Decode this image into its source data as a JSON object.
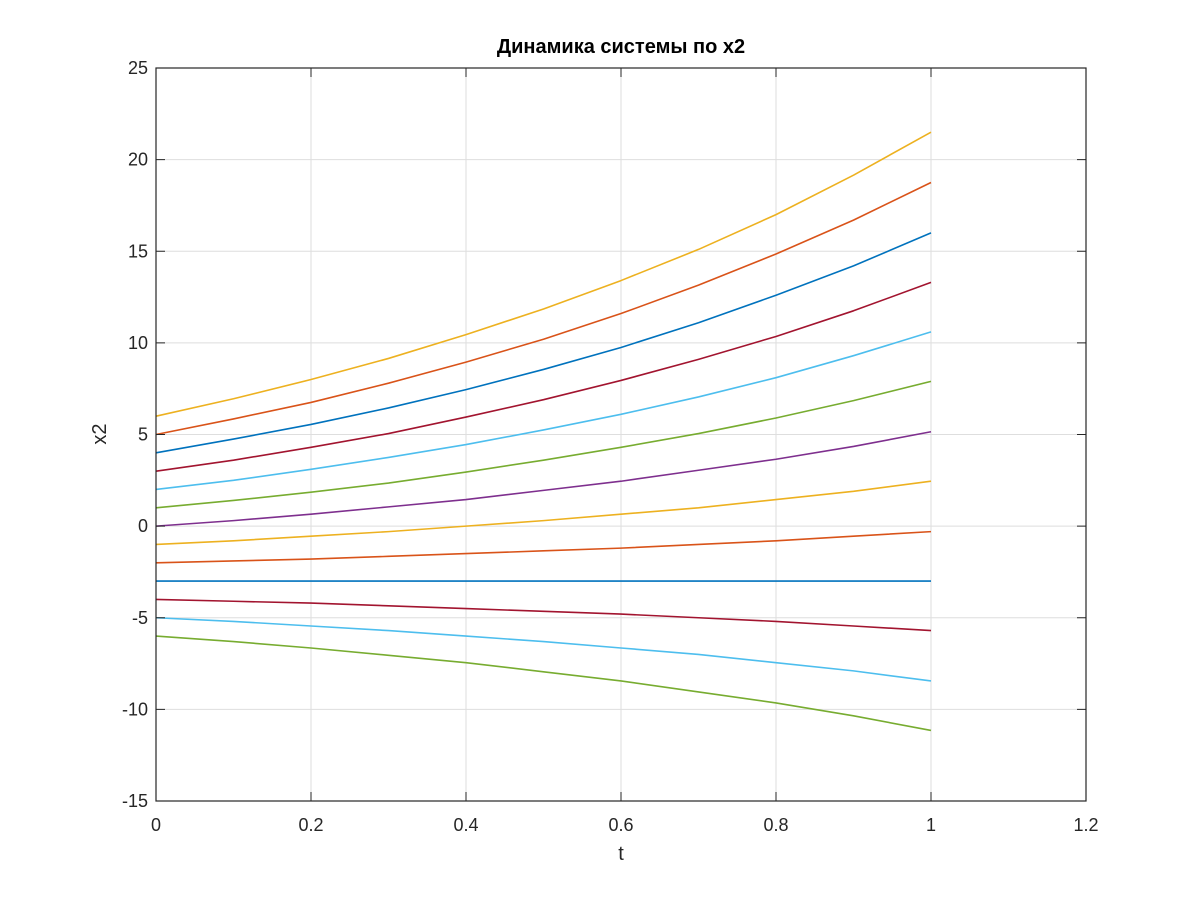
{
  "chart_data": {
    "type": "line",
    "title": "Динамика системы по x2",
    "xlabel": "t",
    "ylabel": "x2",
    "xlim": [
      0,
      1.2
    ],
    "ylim": [
      -15,
      25
    ],
    "xticks": [
      0,
      0.2,
      0.4,
      0.6,
      0.8,
      1,
      1.2
    ],
    "xtick_labels": [
      "0",
      "0.2",
      "0.4",
      "0.6",
      "0.8",
      "1",
      "1.2"
    ],
    "yticks": [
      -15,
      -10,
      -5,
      0,
      5,
      10,
      15,
      20,
      25
    ],
    "ytick_labels": [
      "-15",
      "-10",
      "-5",
      "0",
      "5",
      "10",
      "15",
      "20",
      "25"
    ],
    "grid": true,
    "x": [
      0,
      0.1,
      0.2,
      0.3,
      0.4,
      0.5,
      0.6,
      0.7,
      0.8,
      0.9,
      1.0
    ],
    "series": [
      {
        "color": "#EDB120",
        "values": [
          6,
          6.95,
          8.0,
          9.15,
          10.45,
          11.85,
          13.4,
          15.1,
          17.0,
          19.15,
          21.5
        ]
      },
      {
        "color": "#D95319",
        "values": [
          5,
          5.85,
          6.75,
          7.8,
          8.95,
          10.2,
          11.6,
          13.15,
          14.85,
          16.7,
          18.75
        ]
      },
      {
        "color": "#0072BD",
        "values": [
          4,
          4.75,
          5.55,
          6.45,
          7.45,
          8.55,
          9.75,
          11.1,
          12.6,
          14.2,
          16.0
        ]
      },
      {
        "color": "#A2142F",
        "values": [
          3,
          3.6,
          4.3,
          5.05,
          5.95,
          6.9,
          7.95,
          9.1,
          10.35,
          11.75,
          13.3
        ]
      },
      {
        "color": "#4DBEEE",
        "values": [
          2,
          2.5,
          3.1,
          3.75,
          4.45,
          5.25,
          6.1,
          7.05,
          8.1,
          9.3,
          10.6
        ]
      },
      {
        "color": "#77AC30",
        "values": [
          1,
          1.4,
          1.85,
          2.35,
          2.95,
          3.6,
          4.3,
          5.05,
          5.9,
          6.85,
          7.9
        ]
      },
      {
        "color": "#7E2F8E",
        "values": [
          0,
          0.3,
          0.65,
          1.05,
          1.45,
          1.95,
          2.45,
          3.05,
          3.65,
          4.35,
          5.15
        ]
      },
      {
        "color": "#EDB120",
        "values": [
          -1,
          -0.8,
          -0.55,
          -0.3,
          0.0,
          0.3,
          0.65,
          1.0,
          1.45,
          1.9,
          2.45
        ]
      },
      {
        "color": "#D95319",
        "values": [
          -2,
          -1.9,
          -1.8,
          -1.65,
          -1.5,
          -1.35,
          -1.2,
          -1.0,
          -0.8,
          -0.55,
          -0.3
        ]
      },
      {
        "color": "#0072BD",
        "values": [
          -3,
          -3,
          -3,
          -3,
          -3,
          -3,
          -3,
          -3,
          -3,
          -3,
          -3
        ]
      },
      {
        "color": "#A2142F",
        "values": [
          -4,
          -4.1,
          -4.2,
          -4.35,
          -4.5,
          -4.65,
          -4.8,
          -5.0,
          -5.2,
          -5.45,
          -5.7
        ]
      },
      {
        "color": "#4DBEEE",
        "values": [
          -5,
          -5.2,
          -5.45,
          -5.7,
          -6.0,
          -6.3,
          -6.65,
          -7.0,
          -7.45,
          -7.9,
          -8.45
        ]
      },
      {
        "color": "#77AC30",
        "values": [
          -6,
          -6.3,
          -6.65,
          -7.05,
          -7.45,
          -7.95,
          -8.45,
          -9.05,
          -9.65,
          -10.35,
          -11.15
        ]
      }
    ]
  }
}
